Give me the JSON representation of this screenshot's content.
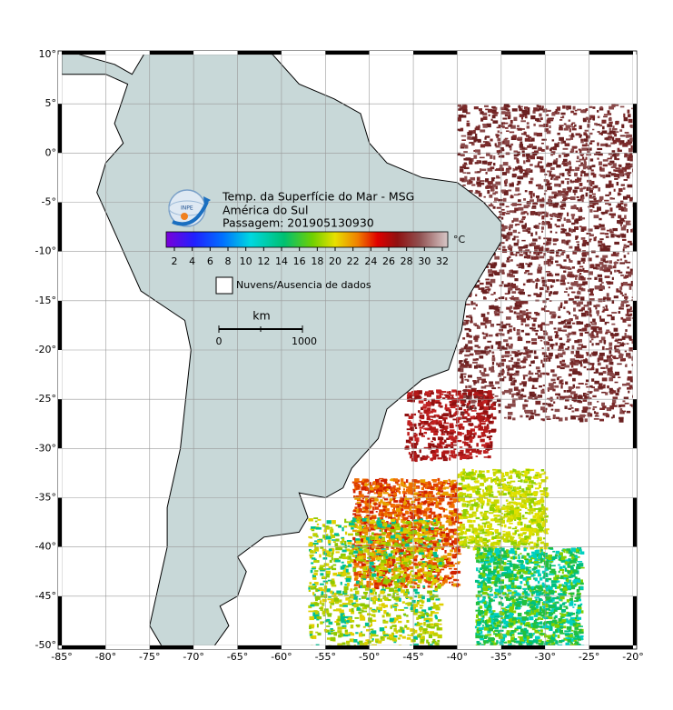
{
  "map": {
    "title": "Temp. da Superfície do Mar - MSG",
    "region": "América do Sul",
    "pass": "Passagem: 201905130930",
    "colorbar": {
      "unit": "°C",
      "ticks": [
        "2",
        "4",
        "6",
        "8",
        "10",
        "12",
        "14",
        "16",
        "18",
        "20",
        "22",
        "24",
        "26",
        "28",
        "30",
        "32"
      ]
    },
    "legend": "Nuvens/Ausencia de dados",
    "scale": {
      "unit": "km",
      "start": "0",
      "end": "1000"
    },
    "lat_labels": [
      "10°",
      "5°",
      "0°",
      "-5°",
      "-10°",
      "-15°",
      "-20°",
      "-25°",
      "-30°",
      "-35°",
      "-40°",
      "-45°",
      "-50°"
    ],
    "lon_labels": [
      "-85°",
      "-80°",
      "-75°",
      "-70°",
      "-65°",
      "-60°",
      "-55°",
      "-50°",
      "-45°",
      "-40°",
      "-35°",
      "-30°",
      "-25°",
      "-20°"
    ]
  }
}
